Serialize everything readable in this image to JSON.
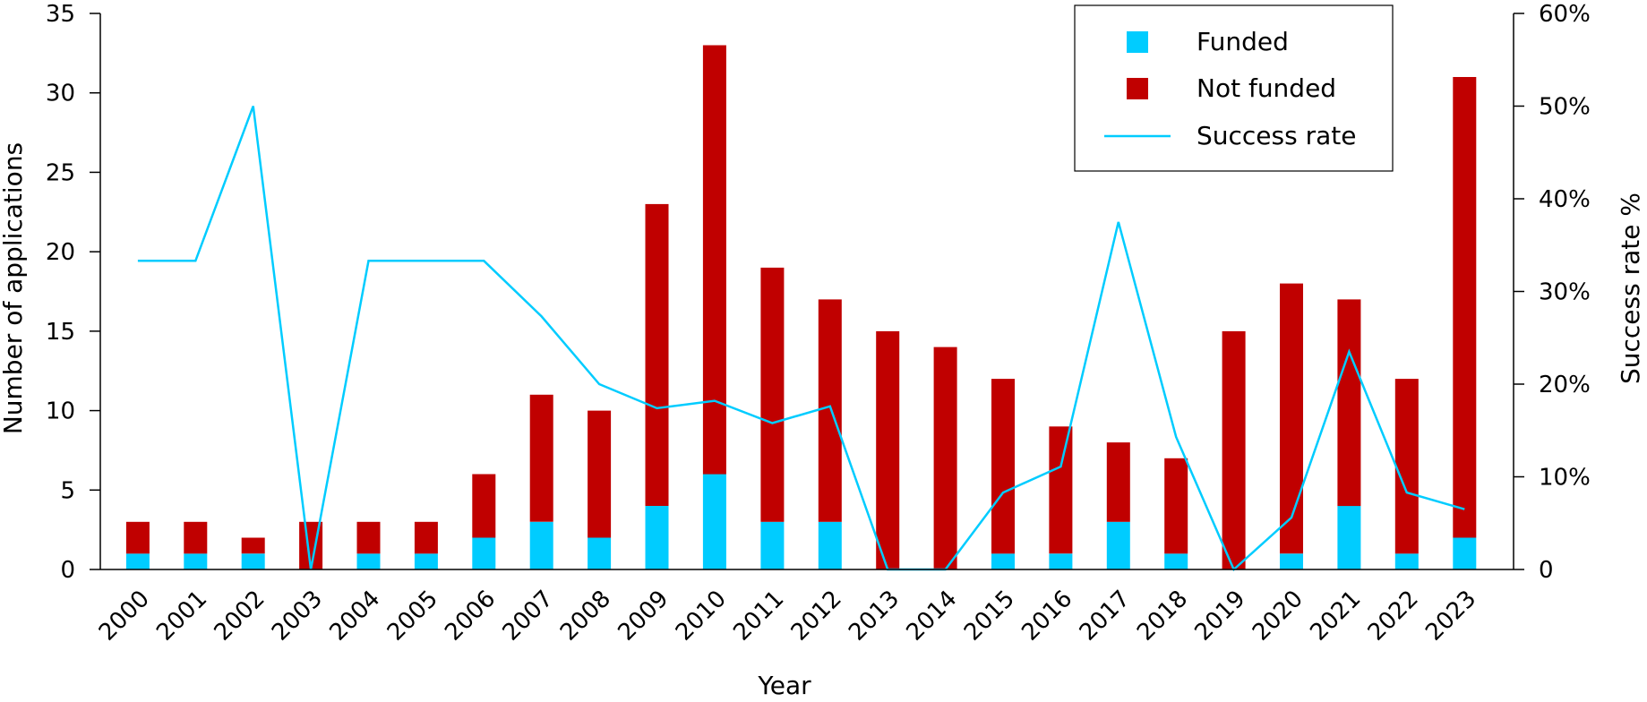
{
  "chart_data": {
    "type": "bar",
    "stacked": true,
    "categories": [
      "2000",
      "2001",
      "2002",
      "2003",
      "2004",
      "2005",
      "2006",
      "2007",
      "2008",
      "2009",
      "2010",
      "2011",
      "2012",
      "2013",
      "2014",
      "2015",
      "2016",
      "2017",
      "2018",
      "2019",
      "2020",
      "2021",
      "2022",
      "2023"
    ],
    "series": [
      {
        "name": "Funded",
        "color": "#00ccff",
        "values": [
          1,
          1,
          1,
          0,
          1,
          1,
          2,
          3,
          2,
          4,
          6,
          3,
          3,
          0,
          0,
          1,
          1,
          3,
          1,
          0,
          1,
          4,
          1,
          2
        ]
      },
      {
        "name": "Not funded",
        "color": "#c00000",
        "values": [
          2,
          2,
          1,
          3,
          2,
          2,
          4,
          8,
          8,
          19,
          27,
          16,
          14,
          15,
          14,
          11,
          8,
          5,
          6,
          15,
          17,
          13,
          11,
          29
        ]
      }
    ],
    "line_series": {
      "name": "Success rate",
      "color": "#00ccff",
      "axis": "right",
      "values": [
        33.3,
        33.3,
        50,
        0,
        33.3,
        33.3,
        33.3,
        27.3,
        20,
        17.4,
        18.2,
        15.8,
        17.6,
        0,
        0,
        8.3,
        11.1,
        37.5,
        14.3,
        0,
        5.6,
        23.5,
        8.3,
        6.5
      ]
    },
    "xlabel": "Year",
    "ylabel": "Number of applications",
    "y2label": "Success rate %",
    "ylim": [
      0,
      35
    ],
    "yticks": [
      0,
      5,
      10,
      15,
      20,
      25,
      30,
      35
    ],
    "y2lim": [
      0,
      60
    ],
    "y2ticks": [
      0,
      10,
      20,
      30,
      40,
      50,
      60
    ],
    "y2tick_labels": [
      "0",
      "10%",
      "20%",
      "30%",
      "40%",
      "50%",
      "60%"
    ],
    "legend_position": "top-right"
  }
}
